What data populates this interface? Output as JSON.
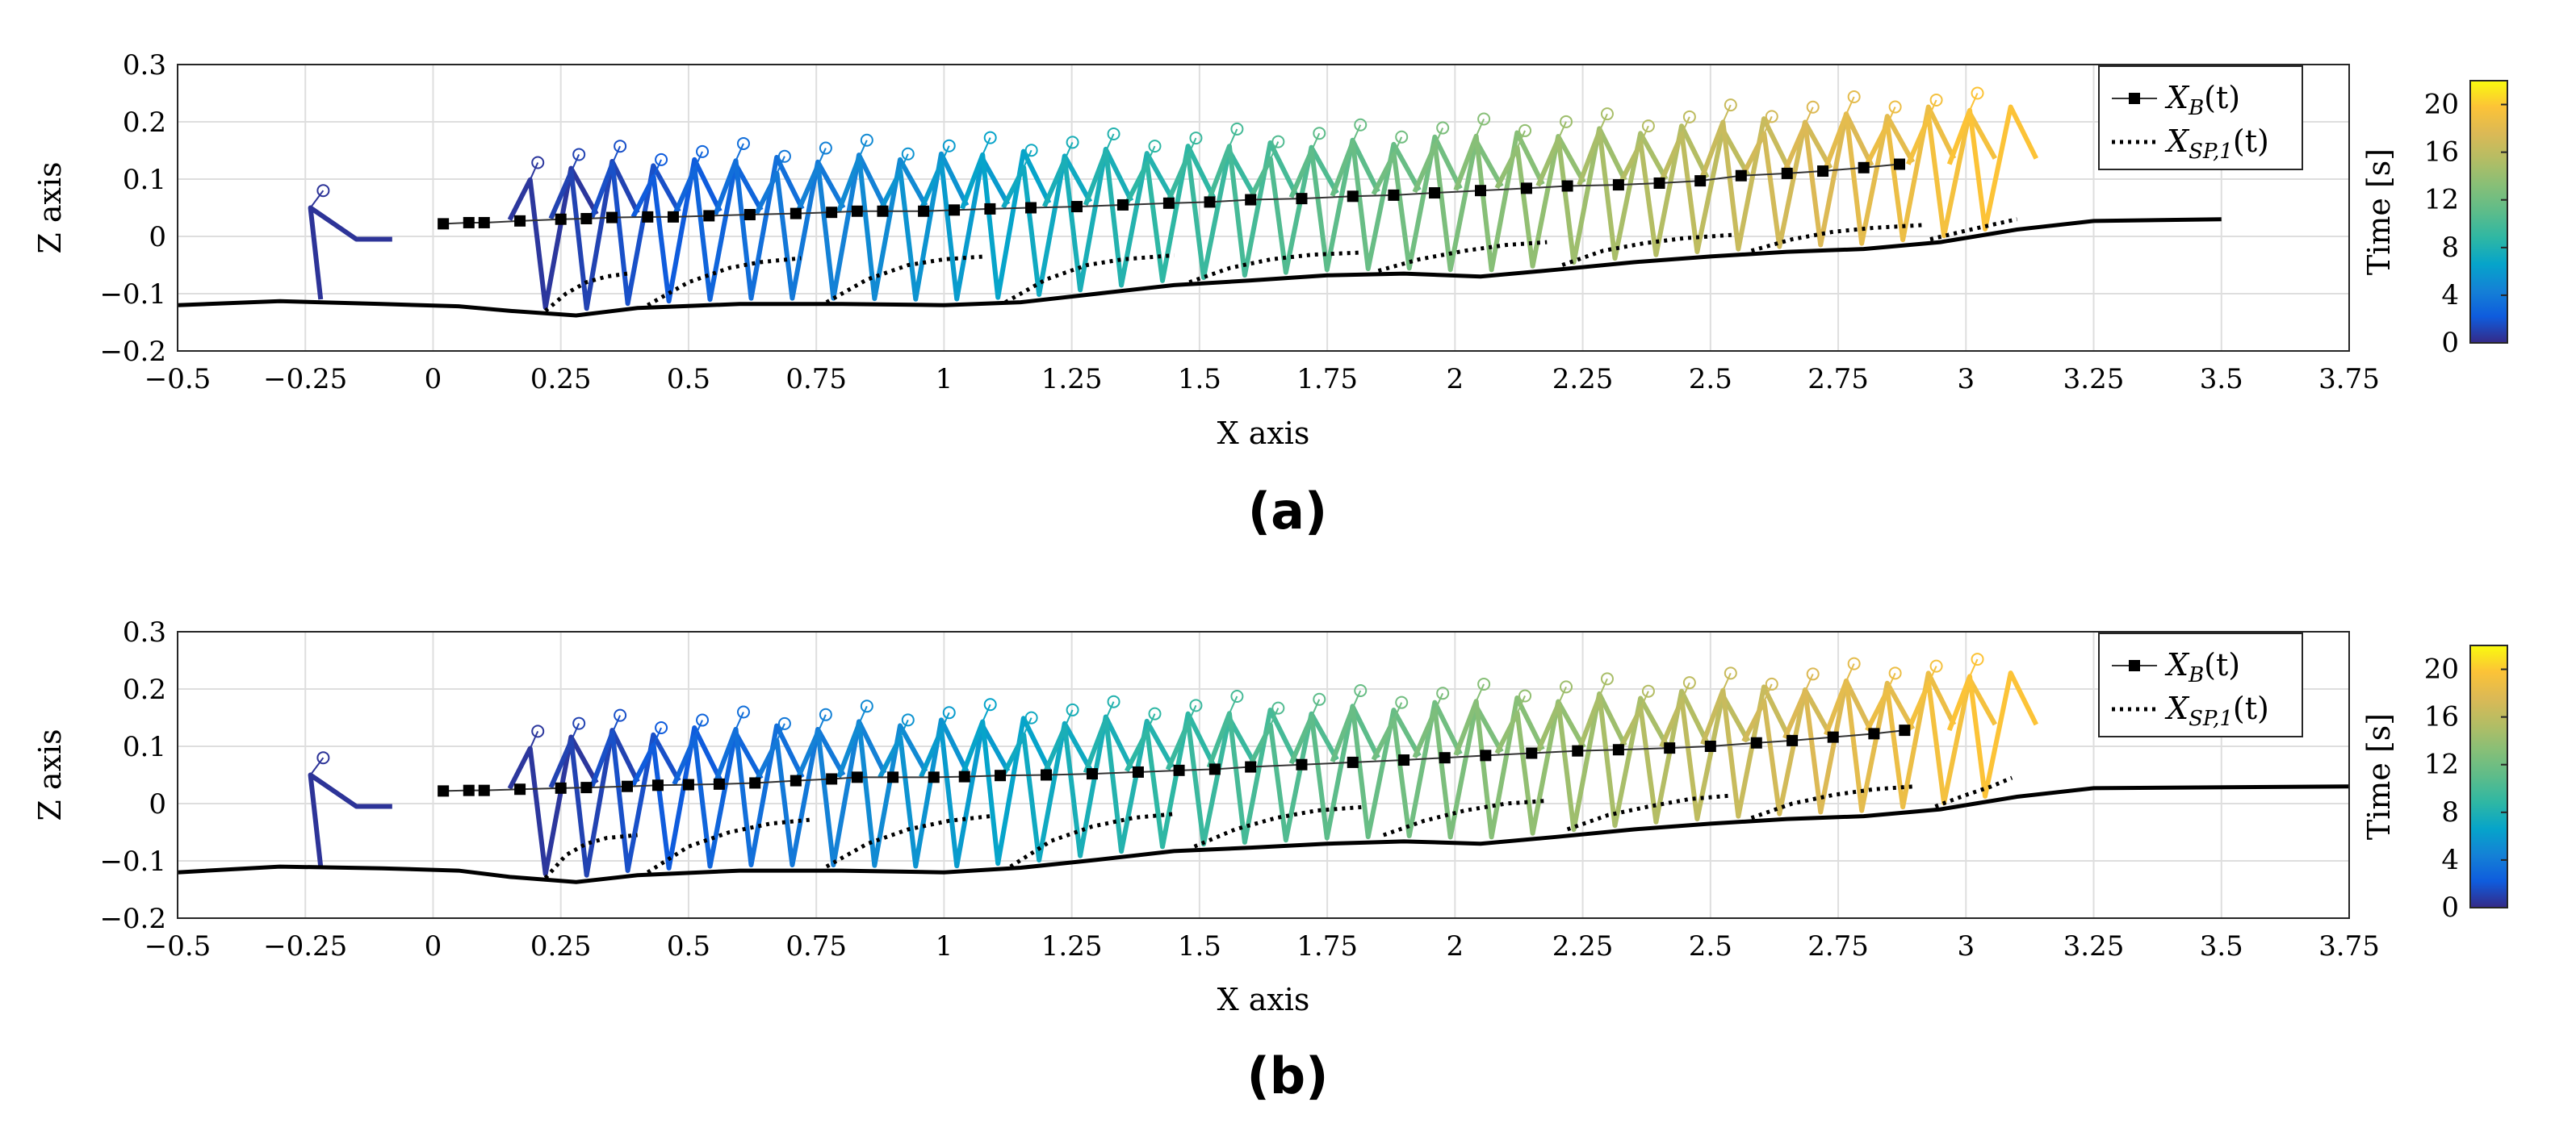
{
  "chart_data": [
    {
      "type": "line",
      "panel_label": "(a)",
      "xlabel": "X axis",
      "ylabel": "Z axis",
      "xlim": [
        -0.5,
        3.75
      ],
      "ylim": [
        -0.2,
        0.3
      ],
      "xticks": [
        -0.5,
        -0.25,
        0,
        0.25,
        0.5,
        0.75,
        1,
        1.25,
        1.5,
        1.75,
        2,
        2.25,
        2.5,
        2.75,
        3,
        3.25,
        3.5,
        3.75
      ],
      "xtick_labels": [
        "−0.5",
        "−0.25",
        "0",
        "0.25",
        "0.5",
        "0.75",
        "1",
        "1.25",
        "1.5",
        "1.75",
        "2",
        "2.25",
        "2.5",
        "2.75",
        "3",
        "3.25",
        "3.5",
        "3.75"
      ],
      "yticks": [
        -0.2,
        -0.1,
        0,
        0.1,
        0.2,
        0.3
      ],
      "ytick_labels": [
        "−0.2",
        "−0.1",
        "0",
        "0.1",
        "0.2",
        "0.3"
      ],
      "grid": true,
      "legend": {
        "position": "top-right",
        "entries": [
          {
            "label": "X_B(t)",
            "main": "X",
            "sub": "B",
            "arg": "(t)",
            "style": "black line with square markers"
          },
          {
            "label": "X_SP,1(t)",
            "main": "X",
            "sub": "SP,1",
            "arg": "(t)",
            "style": "black dotted line"
          }
        ]
      },
      "colorbar": {
        "label": "Time [s]",
        "ticks": [
          0,
          4,
          8,
          12,
          16,
          20
        ],
        "range": [
          0,
          22
        ],
        "colormap": "parula"
      },
      "series": [
        {
          "name": "terrain",
          "x": [
            -0.5,
            -0.3,
            -0.1,
            0.05,
            0.15,
            0.28,
            0.4,
            0.6,
            0.8,
            1.0,
            1.15,
            1.3,
            1.45,
            1.6,
            1.75,
            1.9,
            2.05,
            2.2,
            2.35,
            2.5,
            2.65,
            2.8,
            2.95,
            3.1,
            3.25,
            3.5
          ],
          "z": [
            -0.12,
            -0.113,
            -0.118,
            -0.122,
            -0.13,
            -0.138,
            -0.125,
            -0.118,
            -0.118,
            -0.12,
            -0.115,
            -0.1,
            -0.085,
            -0.077,
            -0.068,
            -0.065,
            -0.07,
            -0.058,
            -0.045,
            -0.035,
            -0.027,
            -0.022,
            -0.01,
            0.012,
            0.027,
            0.03
          ]
        },
        {
          "name": "X_B(t)",
          "x": [
            0.02,
            0.07,
            0.1,
            0.17,
            0.25,
            0.3,
            0.35,
            0.42,
            0.47,
            0.54,
            0.62,
            0.71,
            0.78,
            0.83,
            0.88,
            0.96,
            1.02,
            1.09,
            1.17,
            1.26,
            1.35,
            1.44,
            1.52,
            1.6,
            1.7,
            1.8,
            1.88,
            1.96,
            2.05,
            2.14,
            2.22,
            2.32,
            2.4,
            2.48,
            2.56,
            2.65,
            2.72,
            2.8,
            2.87
          ],
          "z": [
            0.022,
            0.024,
            0.024,
            0.027,
            0.03,
            0.031,
            0.033,
            0.034,
            0.034,
            0.036,
            0.038,
            0.04,
            0.042,
            0.044,
            0.044,
            0.044,
            0.046,
            0.048,
            0.05,
            0.052,
            0.055,
            0.058,
            0.06,
            0.064,
            0.066,
            0.07,
            0.072,
            0.076,
            0.08,
            0.084,
            0.088,
            0.09,
            0.093,
            0.097,
            0.106,
            0.11,
            0.114,
            0.12,
            0.126
          ]
        },
        {
          "name": "X_SP,1(t)",
          "segments": [
            {
              "x": [
                0.22,
                0.26,
                0.3,
                0.34,
                0.38
              ],
              "z": [
                -0.13,
                -0.1,
                -0.08,
                -0.07,
                -0.065
              ]
            },
            {
              "x": [
                0.42,
                0.5,
                0.58,
                0.64,
                0.72
              ],
              "z": [
                -0.12,
                -0.08,
                -0.055,
                -0.045,
                -0.038
              ]
            },
            {
              "x": [
                0.77,
                0.85,
                0.93,
                1.0,
                1.08
              ],
              "z": [
                -0.115,
                -0.075,
                -0.05,
                -0.04,
                -0.035
              ]
            },
            {
              "x": [
                1.12,
                1.2,
                1.28,
                1.35,
                1.45
              ],
              "z": [
                -0.115,
                -0.075,
                -0.05,
                -0.04,
                -0.033
              ]
            },
            {
              "x": [
                1.48,
                1.56,
                1.64,
                1.72,
                1.82
              ],
              "z": [
                -0.08,
                -0.055,
                -0.04,
                -0.032,
                -0.028
              ]
            },
            {
              "x": [
                1.85,
                1.93,
                2.02,
                2.1,
                2.18
              ],
              "z": [
                -0.06,
                -0.04,
                -0.025,
                -0.015,
                -0.01
              ]
            },
            {
              "x": [
                2.21,
                2.29,
                2.37,
                2.45,
                2.55
              ],
              "z": [
                -0.05,
                -0.025,
                -0.012,
                -0.003,
                0.003
              ]
            },
            {
              "x": [
                2.58,
                2.66,
                2.74,
                2.82,
                2.92
              ],
              "z": [
                -0.025,
                -0.005,
                0.008,
                0.015,
                0.02
              ]
            },
            {
              "x": [
                2.93,
                3.0,
                3.05,
                3.1
              ],
              "z": [
                -0.005,
                0.01,
                0.02,
                0.03
              ]
            }
          ]
        }
      ]
    },
    {
      "type": "line",
      "panel_label": "(b)",
      "xlabel": "X axis",
      "ylabel": "Z axis",
      "xlim": [
        -0.5,
        3.75
      ],
      "ylim": [
        -0.2,
        0.3
      ],
      "xticks": [
        -0.5,
        -0.25,
        0,
        0.25,
        0.5,
        0.75,
        1,
        1.25,
        1.5,
        1.75,
        2,
        2.25,
        2.5,
        2.75,
        3,
        3.25,
        3.5,
        3.75
      ],
      "xtick_labels": [
        "−0.5",
        "−0.25",
        "0",
        "0.25",
        "0.5",
        "0.75",
        "1",
        "1.25",
        "1.5",
        "1.75",
        "2",
        "2.25",
        "2.5",
        "2.75",
        "3",
        "3.25",
        "3.5",
        "3.75"
      ],
      "yticks": [
        -0.2,
        -0.1,
        0,
        0.1,
        0.2,
        0.3
      ],
      "ytick_labels": [
        "−0.2",
        "−0.1",
        "0",
        "0.1",
        "0.2",
        "0.3"
      ],
      "grid": true,
      "legend": {
        "position": "top-right",
        "entries": [
          {
            "label": "X_B(t)",
            "main": "X",
            "sub": "B",
            "arg": "(t)",
            "style": "black line with square markers"
          },
          {
            "label": "X_SP,1(t)",
            "main": "X",
            "sub": "SP,1",
            "arg": "(t)",
            "style": "black dotted line"
          }
        ]
      },
      "colorbar": {
        "label": "Time [s]",
        "ticks": [
          0,
          4,
          8,
          12,
          16,
          20
        ],
        "range": [
          0,
          22
        ],
        "colormap": "parula"
      },
      "series": [
        {
          "name": "terrain",
          "x": [
            -0.5,
            -0.3,
            -0.1,
            0.05,
            0.15,
            0.28,
            0.4,
            0.6,
            0.8,
            1.0,
            1.15,
            1.3,
            1.45,
            1.6,
            1.75,
            1.9,
            2.05,
            2.2,
            2.35,
            2.5,
            2.65,
            2.8,
            2.95,
            3.1,
            3.25,
            3.75
          ],
          "z": [
            -0.12,
            -0.11,
            -0.113,
            -0.117,
            -0.128,
            -0.137,
            -0.125,
            -0.117,
            -0.117,
            -0.12,
            -0.112,
            -0.098,
            -0.083,
            -0.077,
            -0.07,
            -0.066,
            -0.07,
            -0.058,
            -0.045,
            -0.035,
            -0.027,
            -0.022,
            -0.01,
            0.012,
            0.027,
            0.03
          ]
        },
        {
          "name": "X_B(t)",
          "x": [
            0.02,
            0.07,
            0.1,
            0.17,
            0.25,
            0.3,
            0.38,
            0.44,
            0.5,
            0.56,
            0.63,
            0.71,
            0.78,
            0.83,
            0.9,
            0.98,
            1.04,
            1.11,
            1.2,
            1.29,
            1.38,
            1.46,
            1.53,
            1.6,
            1.7,
            1.8,
            1.9,
            1.98,
            2.06,
            2.15,
            2.24,
            2.32,
            2.42,
            2.5,
            2.59,
            2.66,
            2.74,
            2.82,
            2.88
          ],
          "z": [
            0.022,
            0.023,
            0.023,
            0.025,
            0.027,
            0.028,
            0.03,
            0.032,
            0.033,
            0.034,
            0.036,
            0.04,
            0.043,
            0.046,
            0.046,
            0.046,
            0.047,
            0.049,
            0.05,
            0.052,
            0.055,
            0.058,
            0.06,
            0.064,
            0.068,
            0.072,
            0.076,
            0.08,
            0.084,
            0.088,
            0.092,
            0.094,
            0.097,
            0.1,
            0.106,
            0.11,
            0.116,
            0.122,
            0.128
          ]
        },
        {
          "name": "X_SP,1(t)",
          "segments": [
            {
              "x": [
                0.22,
                0.26,
                0.3,
                0.34,
                0.4
              ],
              "z": [
                -0.13,
                -0.09,
                -0.07,
                -0.06,
                -0.055
              ]
            },
            {
              "x": [
                0.42,
                0.5,
                0.58,
                0.66,
                0.74
              ],
              "z": [
                -0.12,
                -0.075,
                -0.05,
                -0.035,
                -0.028
              ]
            },
            {
              "x": [
                0.77,
                0.85,
                0.93,
                1.01,
                1.09
              ],
              "z": [
                -0.11,
                -0.07,
                -0.045,
                -0.03,
                -0.022
              ]
            },
            {
              "x": [
                1.13,
                1.21,
                1.29,
                1.37,
                1.45
              ],
              "z": [
                -0.11,
                -0.065,
                -0.04,
                -0.025,
                -0.018
              ]
            },
            {
              "x": [
                1.49,
                1.57,
                1.65,
                1.73,
                1.82
              ],
              "z": [
                -0.075,
                -0.045,
                -0.025,
                -0.012,
                -0.006
              ]
            },
            {
              "x": [
                1.86,
                1.94,
                2.02,
                2.1,
                2.18
              ],
              "z": [
                -0.055,
                -0.03,
                -0.012,
                0.0,
                0.005
              ]
            },
            {
              "x": [
                2.22,
                2.3,
                2.38,
                2.46,
                2.54
              ],
              "z": [
                -0.045,
                -0.02,
                -0.005,
                0.008,
                0.014
              ]
            },
            {
              "x": [
                2.58,
                2.66,
                2.74,
                2.82,
                2.9
              ],
              "z": [
                -0.025,
                0.0,
                0.015,
                0.025,
                0.03
              ]
            },
            {
              "x": [
                2.94,
                3.0,
                3.05,
                3.09
              ],
              "z": [
                -0.005,
                0.015,
                0.03,
                0.045
              ]
            }
          ]
        }
      ]
    }
  ]
}
